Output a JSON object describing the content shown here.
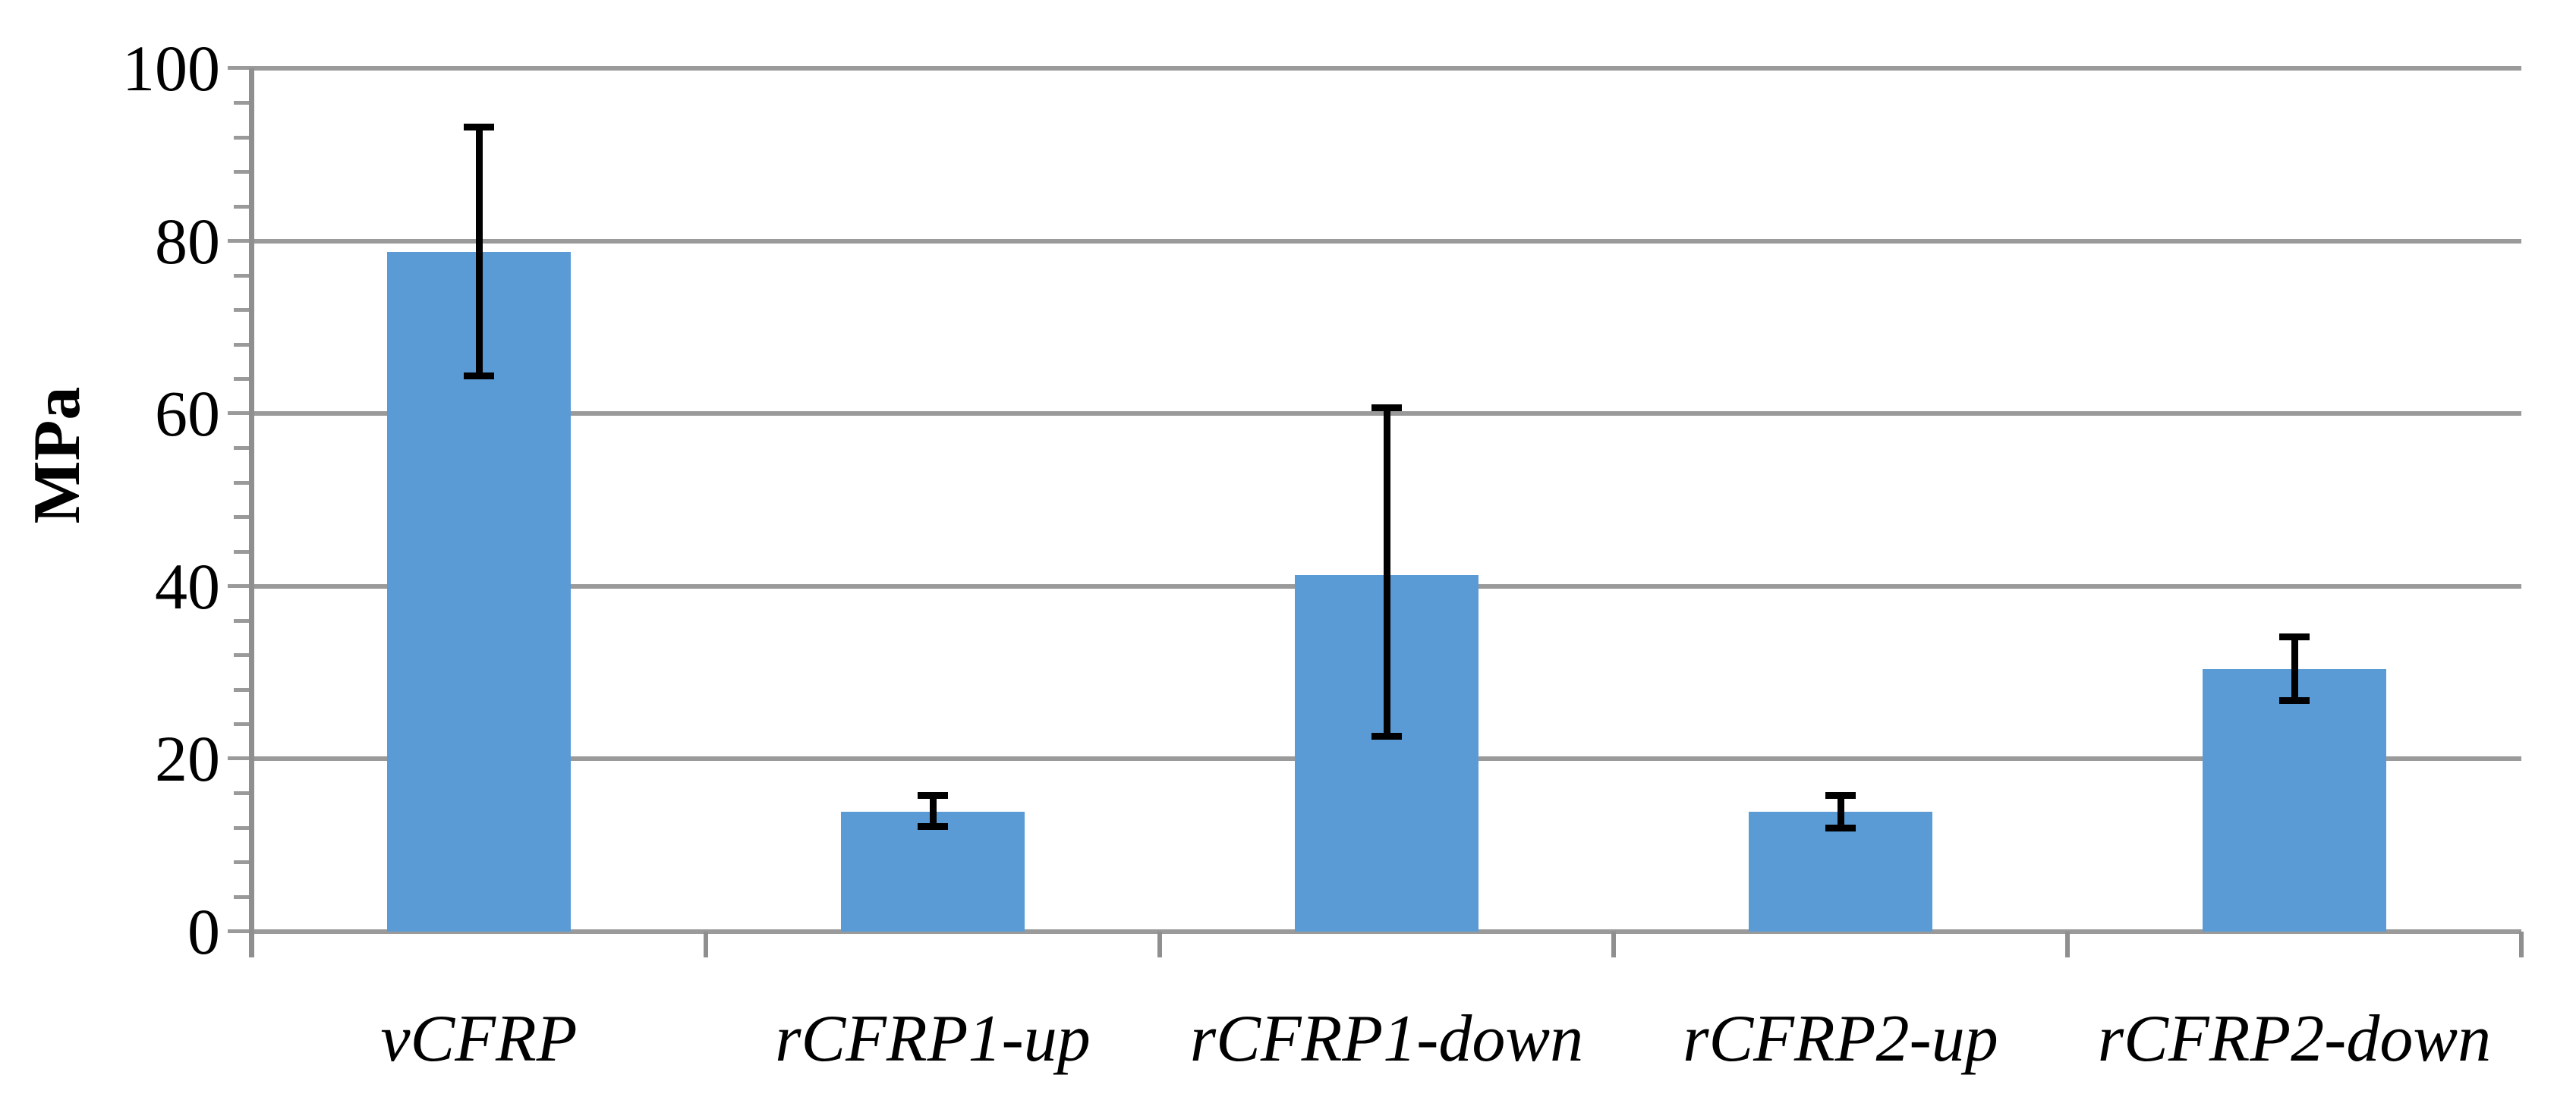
{
  "chart_data": {
    "type": "bar",
    "title": "",
    "xlabel": "",
    "ylabel": "MPa",
    "categories": [
      "vCFRP",
      "rCFRP1-up",
      "rCFRP1-down",
      "rCFRP2-up",
      "rCFRP2-down"
    ],
    "values": [
      78.7,
      13.9,
      41.3,
      13.9,
      30.4
    ],
    "error_plus": [
      14.5,
      1.9,
      19.4,
      1.9,
      3.7
    ],
    "error_minus": [
      14.3,
      1.7,
      18.7,
      1.9,
      3.6
    ],
    "ylim": [
      0,
      100
    ],
    "y_major_unit": 20,
    "y_minor_unit": 4,
    "y_tick_labels": [
      "0",
      "20",
      "40",
      "60",
      "80",
      "100"
    ],
    "grid": true,
    "legend_position": "none",
    "colors": {
      "bar_fill": "#5B9BD5",
      "gridline": "#9a9a9a",
      "axis": "#8f8f8f",
      "error_bar": "#000000",
      "text": "#000000",
      "background": "#ffffff"
    }
  }
}
